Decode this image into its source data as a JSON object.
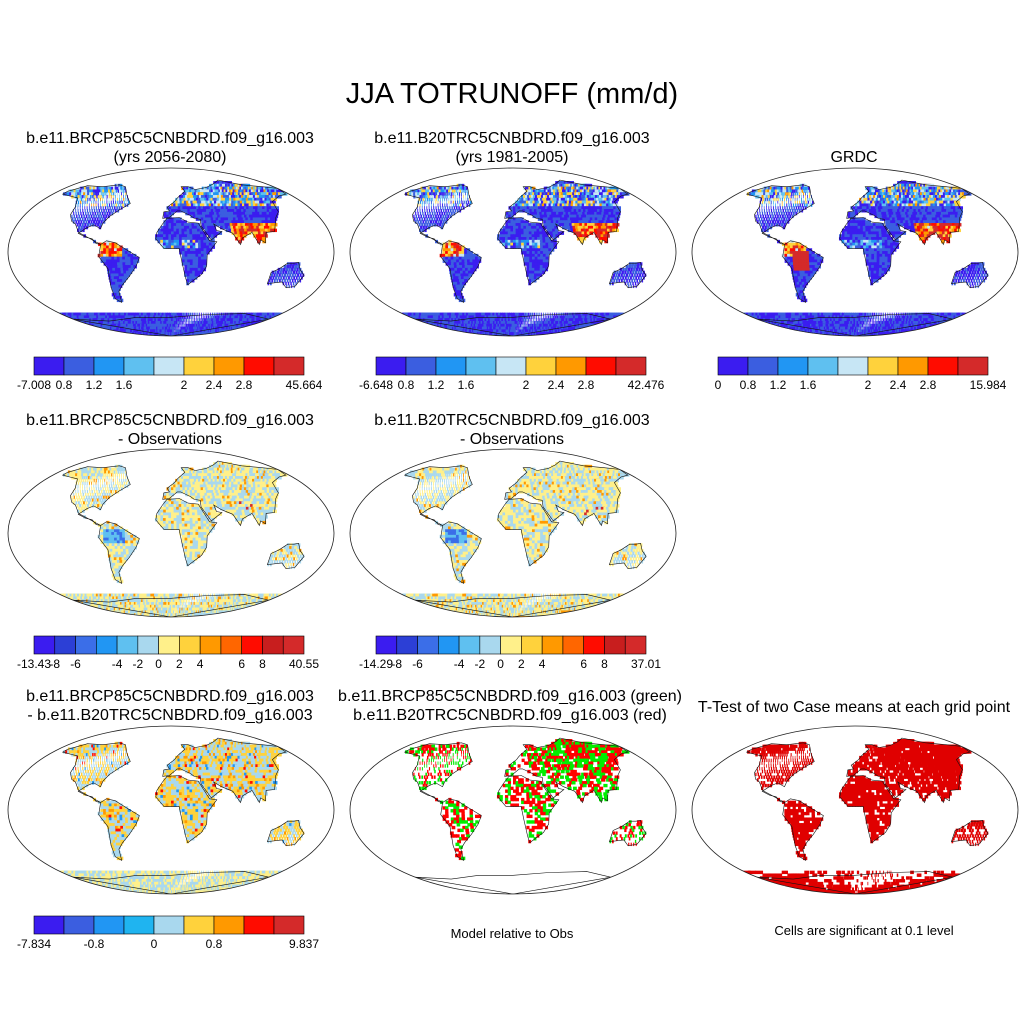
{
  "title": "JJA TOTRUNOFF (mm/d)",
  "panels": [
    {
      "id": "p1",
      "title1": "b.e11.BRCP85C5CNBDRD.f09_g16.003",
      "title2": "(yrs 2056-2080)",
      "field": "abs",
      "seed": 11
    },
    {
      "id": "p2",
      "title1": "b.e11.B20TRC5CNBDRD.f09_g16.003",
      "title2": "(yrs 1981-2005)",
      "field": "abs",
      "seed": 23
    },
    {
      "id": "p3",
      "title1": "",
      "title2": "GRDC",
      "field": "obs",
      "seed": 37
    },
    {
      "id": "p4",
      "title1": "b.e11.BRCP85C5CNBDRD.f09_g16.003",
      "title2": "- Observations",
      "field": "bias",
      "seed": 41
    },
    {
      "id": "p5",
      "title1": "b.e11.B20TRC5CNBDRD.f09_g16.003",
      "title2": "- Observations",
      "field": "bias",
      "seed": 53
    },
    {
      "id": "p7",
      "title1": "b.e11.BRCP85C5CNBDRD.f09_g16.003",
      "title2": "- b.e11.B20TRC5CNBDRD.f09_g16.003",
      "field": "diff",
      "seed": 67
    },
    {
      "id": "p8",
      "title1": "b.e11.BRCP85C5CNBDRD.f09_g16.003 (green)",
      "title2": "b.e11.B20TRC5CNBDRD.f09_g16.003 (red)",
      "field": "rel",
      "seed": 79
    },
    {
      "id": "p9",
      "title1": "T-Test of two Case means at each grid point",
      "title2": "",
      "field": "sig",
      "seed": 97
    }
  ],
  "colorbars": [
    {
      "id": "cb1",
      "colors": [
        "#3b1cf0",
        "#3b5ee0",
        "#2196f3",
        "#5fc0f0",
        "#c7e6f5",
        "#ffd23c",
        "#ff9900",
        "#ff0c00",
        "#d42a2a"
      ],
      "labels": [
        "-7.008",
        "0.8",
        "1.2",
        "1.6",
        "2",
        "2.4",
        "2.8",
        "45.664"
      ]
    },
    {
      "id": "cb2",
      "colors": [
        "#3b1cf0",
        "#3b5ee0",
        "#2196f3",
        "#5fc0f0",
        "#c7e6f5",
        "#ffd23c",
        "#ff9900",
        "#ff0c00",
        "#d42a2a"
      ],
      "labels": [
        "-6.648",
        "0.8",
        "1.2",
        "1.6",
        "2",
        "2.4",
        "2.8",
        "42.476"
      ]
    },
    {
      "id": "cb3",
      "colors": [
        "#3b1cf0",
        "#3b5ee0",
        "#2196f3",
        "#5fc0f0",
        "#c7e6f5",
        "#ffd23c",
        "#ff9900",
        "#ff0c00",
        "#d42a2a"
      ],
      "labels": [
        "0",
        "0.8",
        "1.2",
        "1.6",
        "2",
        "2.4",
        "2.8",
        "15.984"
      ]
    },
    {
      "id": "cb4",
      "colors": [
        "#3b1cf0",
        "#2c3fd6",
        "#3b6ee8",
        "#2196f3",
        "#5fc0f0",
        "#a9d8ee",
        "#fff08a",
        "#ffd23c",
        "#ff9900",
        "#ff6600",
        "#ff0c00",
        "#c81e1e",
        "#d42a2a"
      ],
      "labels": [
        "-13.43",
        "-8",
        "-6",
        "-4",
        "-2",
        "0",
        "2",
        "4",
        "6",
        "8",
        "40.55"
      ]
    },
    {
      "id": "cb5",
      "colors": [
        "#3b1cf0",
        "#2c3fd6",
        "#3b6ee8",
        "#2196f3",
        "#5fc0f0",
        "#a9d8ee",
        "#fff08a",
        "#ffd23c",
        "#ff9900",
        "#ff6600",
        "#ff0c00",
        "#c81e1e",
        "#d42a2a"
      ],
      "labels": [
        "-14.29",
        "-8",
        "-6",
        "-4",
        "-2",
        "0",
        "2",
        "4",
        "6",
        "8",
        "37.01"
      ]
    },
    {
      "id": "cb7",
      "colors": [
        "#3b1cf0",
        "#3b5ee0",
        "#2196f3",
        "#1fb4f0",
        "#a9d8ee",
        "#ffd23c",
        "#ff9900",
        "#ff0c00",
        "#d42a2a"
      ],
      "labels": [
        "-7.834",
        "-0.8",
        "0",
        "0.8",
        "9.837"
      ]
    }
  ],
  "captions": {
    "p8": "Model relative to Obs",
    "p9": "Cells are significant at 0.1 level"
  }
}
